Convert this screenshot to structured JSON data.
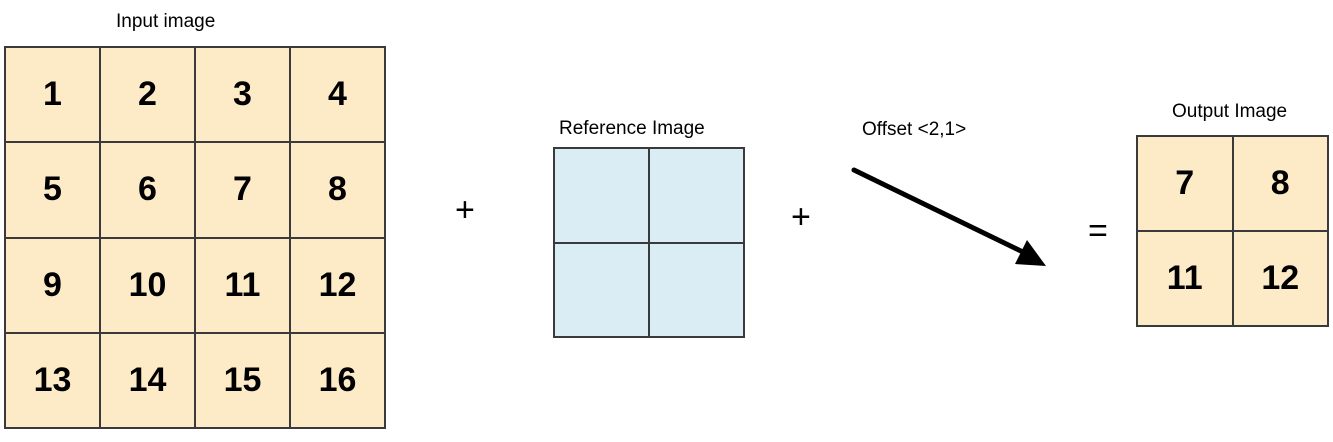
{
  "input": {
    "label": "Input image",
    "fill": "#fdebc8",
    "cells": [
      "1",
      "2",
      "3",
      "4",
      "5",
      "6",
      "7",
      "8",
      "9",
      "10",
      "11",
      "12",
      "13",
      "14",
      "15",
      "16"
    ]
  },
  "operators": {
    "plus1": "+",
    "plus2": "+",
    "equals": "="
  },
  "reference": {
    "label": "Reference Image",
    "fill": "#dbedf4",
    "cells": [
      "",
      "",
      "",
      ""
    ]
  },
  "offset": {
    "label": "Offset <2,1>"
  },
  "output": {
    "label": "Output Image",
    "fill": "#fdebc8",
    "cells": [
      "7",
      "8",
      "11",
      "12"
    ]
  }
}
